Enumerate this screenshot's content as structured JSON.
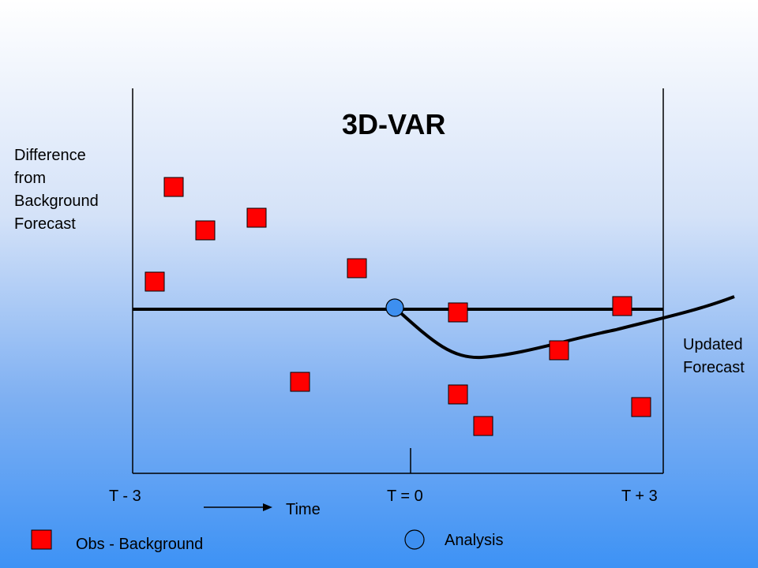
{
  "title": "3D-VAR",
  "y_label_lines": [
    "Difference",
    "from",
    "Background",
    "Forecast"
  ],
  "updated_forecast_lines": [
    "Updated",
    "Forecast"
  ],
  "ticks": [
    "T - 3",
    "T = 0",
    "T + 3"
  ],
  "time_label": "Time",
  "legend": {
    "obs_label": "Obs - Background",
    "analysis_label": "Analysis"
  },
  "colors": {
    "obs": "#ff0000",
    "analysis": "#3d8ff0",
    "line": "#000000"
  }
}
